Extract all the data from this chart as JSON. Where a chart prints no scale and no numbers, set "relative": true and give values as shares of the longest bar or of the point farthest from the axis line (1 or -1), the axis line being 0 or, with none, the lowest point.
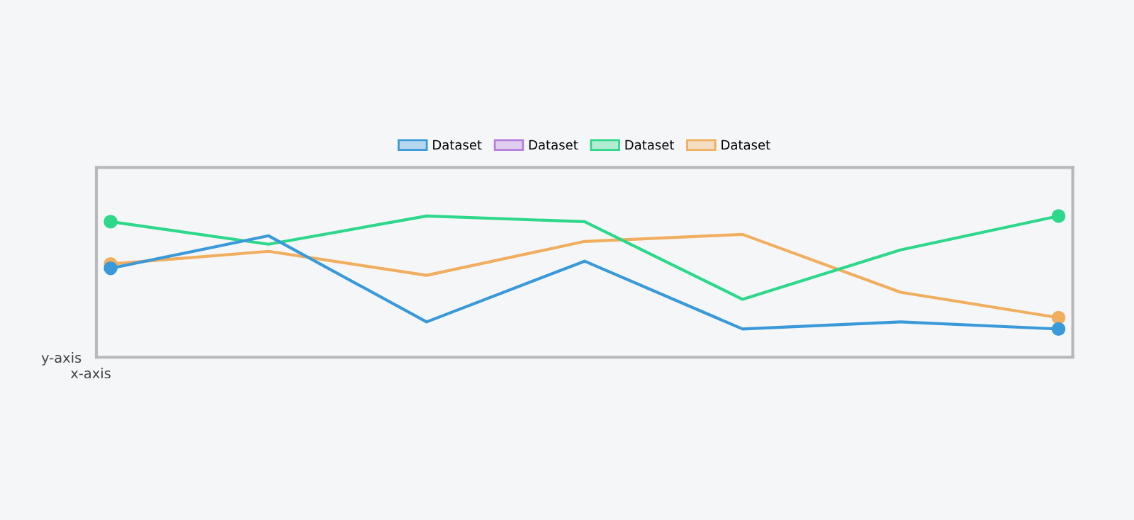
{
  "chart_data": {
    "type": "line",
    "relative": true,
    "xlabel": "x-axis",
    "ylabel": "y-axis",
    "categories": [
      null,
      null,
      null,
      null,
      null,
      null,
      null
    ],
    "tick_labels": false,
    "legend": "top",
    "line_style": "solid",
    "series": [
      {
        "name": "Dataset",
        "color": "#3a9ad9",
        "values": [
          0.63,
          0.86,
          0.25,
          0.68,
          0.2,
          0.25,
          0.2
        ]
      },
      {
        "name": "Dataset",
        "color": "#b57edc",
        "values": [
          null,
          null,
          null,
          null,
          null,
          null,
          null
        ]
      },
      {
        "name": "Dataset",
        "color": "#2dd88a",
        "values": [
          0.96,
          0.8,
          1.0,
          0.96,
          0.41,
          0.76,
          1.0
        ]
      },
      {
        "name": "Dataset",
        "color": "#f0ae5e",
        "values": [
          0.66,
          0.75,
          0.58,
          0.82,
          0.87,
          0.46,
          0.28
        ]
      }
    ]
  }
}
